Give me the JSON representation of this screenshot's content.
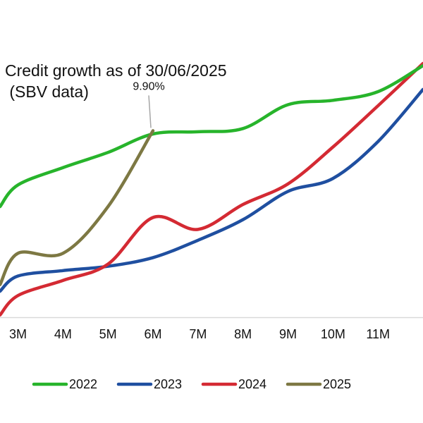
{
  "chart_data": {
    "type": "line",
    "title_lines": [
      "Credit growth as of 30/06/2025",
      " (SBV data)"
    ],
    "categories": [
      "3M",
      "4M",
      "5M",
      "6M",
      "7M",
      "8M",
      "9M",
      "10M",
      "11M"
    ],
    "x_ticks": [
      {
        "x": 3,
        "label": "3M"
      },
      {
        "x": 4,
        "label": "4M"
      },
      {
        "x": 5,
        "label": "5M"
      },
      {
        "x": 6,
        "label": "6M"
      },
      {
        "x": 7,
        "label": "7M"
      },
      {
        "x": 8,
        "label": "8M"
      },
      {
        "x": 9,
        "label": "9M"
      },
      {
        "x": 10,
        "label": "10M"
      },
      {
        "x": 11,
        "label": "11M"
      }
    ],
    "xlim": [
      2.6,
      12.0
    ],
    "ylim": [
      1.3,
      13.0
    ],
    "grid": false,
    "legend_position": "bottom",
    "series": [
      {
        "name": "2022",
        "color": "#27b42b",
        "points": [
          [
            2.6,
            6.4
          ],
          [
            3.0,
            7.4
          ],
          [
            4.0,
            8.2
          ],
          [
            5.0,
            8.9
          ],
          [
            6.0,
            9.75
          ],
          [
            7.0,
            9.85
          ],
          [
            8.0,
            10.0
          ],
          [
            9.0,
            11.1
          ],
          [
            10.0,
            11.3
          ],
          [
            11.0,
            11.7
          ],
          [
            12.0,
            12.9
          ]
        ]
      },
      {
        "name": "2023",
        "color": "#1f4fa0",
        "points": [
          [
            2.6,
            2.5
          ],
          [
            3.0,
            3.2
          ],
          [
            4.0,
            3.45
          ],
          [
            5.0,
            3.65
          ],
          [
            6.0,
            4.05
          ],
          [
            7.0,
            4.85
          ],
          [
            8.0,
            5.8
          ],
          [
            9.0,
            7.1
          ],
          [
            10.0,
            7.7
          ],
          [
            11.0,
            9.4
          ],
          [
            12.0,
            11.8
          ]
        ]
      },
      {
        "name": "2024",
        "color": "#d42a33",
        "points": [
          [
            2.6,
            1.4
          ],
          [
            3.0,
            2.3
          ],
          [
            4.0,
            3.0
          ],
          [
            5.0,
            3.75
          ],
          [
            6.0,
            5.9
          ],
          [
            7.0,
            5.35
          ],
          [
            8.0,
            6.5
          ],
          [
            9.0,
            7.45
          ],
          [
            10.0,
            9.15
          ],
          [
            11.0,
            11.05
          ],
          [
            12.0,
            13.0
          ]
        ]
      },
      {
        "name": "2025",
        "color": "#7d7843",
        "points": [
          [
            2.6,
            2.8
          ],
          [
            3.0,
            4.25
          ],
          [
            4.0,
            4.25
          ],
          [
            5.0,
            6.4
          ],
          [
            6.0,
            9.9
          ]
        ]
      }
    ],
    "annotations": [
      {
        "text": "9.90%",
        "series": "2025",
        "x": 6.0,
        "y": 9.9
      }
    ]
  }
}
